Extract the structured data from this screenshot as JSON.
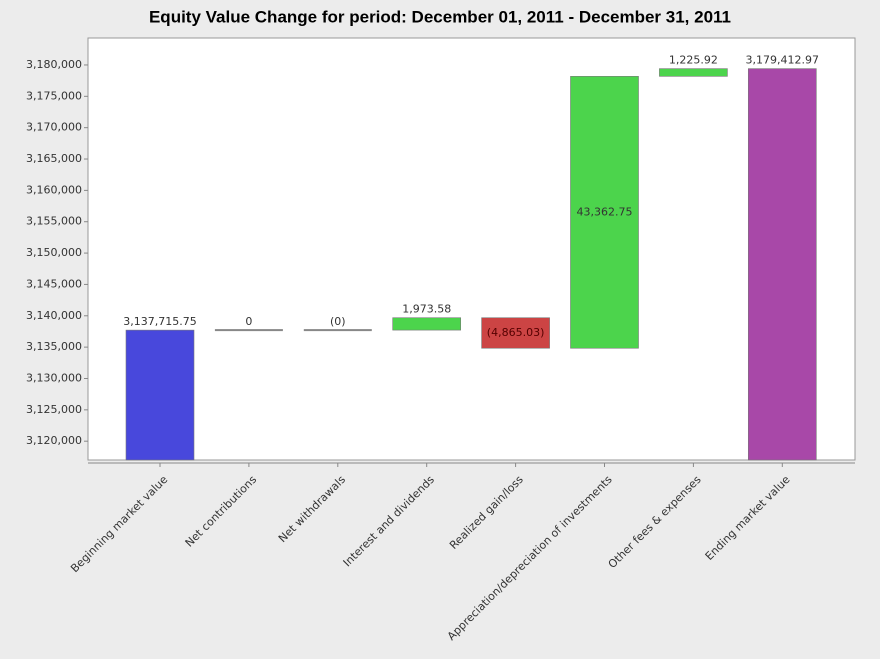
{
  "chart_data": {
    "type": "waterfall",
    "title": "Equity Value Change for period: December 01, 2011 - December 31, 2011",
    "categories": [
      "Beginning market value",
      "Net contributions",
      "Net withdrawals",
      "Interest and dividends",
      "Realized gain/loss",
      "Appreciation/depreciation of investments",
      "Other fees & expenses",
      "Ending market value"
    ],
    "values": [
      3137715.75,
      0,
      0,
      1973.58,
      -4865.03,
      43362.75,
      1225.92,
      3179412.97
    ],
    "value_labels": [
      "3,137,715.75",
      "0",
      "(0)",
      "1,973.58",
      "(4,865.03)",
      "43,362.75",
      "1,225.92",
      "3,179,412.97"
    ],
    "colors": {
      "start": "#4848dc",
      "increase": "#4cd44c",
      "decrease": "#cc4444",
      "end": "#a848a8",
      "zero": "#888888"
    },
    "ylim": [
      3117000,
      3184300
    ],
    "yticks": [
      {
        "value": 3120000,
        "label": "3,120,000"
      },
      {
        "value": 3125000,
        "label": "3,125,000"
      },
      {
        "value": 3130000,
        "label": "3,130,000"
      },
      {
        "value": 3135000,
        "label": "3,135,000"
      },
      {
        "value": 3140000,
        "label": "3,140,000"
      },
      {
        "value": 3145000,
        "label": "3,145,000"
      },
      {
        "value": 3150000,
        "label": "3,150,000"
      },
      {
        "value": 3155000,
        "label": "3,155,000"
      },
      {
        "value": 3160000,
        "label": "3,160,000"
      },
      {
        "value": 3165000,
        "label": "3,165,000"
      },
      {
        "value": 3170000,
        "label": "3,170,000"
      },
      {
        "value": 3175000,
        "label": "3,175,000"
      },
      {
        "value": 3180000,
        "label": "3,180,000"
      }
    ],
    "grid": false
  }
}
